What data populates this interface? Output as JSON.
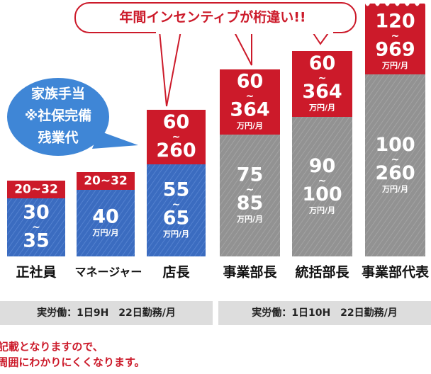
{
  "bubble_top": "年間インセンティブが桁違い!!",
  "bubble_left": [
    "家族手当",
    "※社保完備",
    "残業代"
  ],
  "columns": [
    {
      "label": "正社員",
      "red": [
        "20~32"
      ],
      "body": [
        "30",
        "~",
        "35"
      ]
    },
    {
      "label": "マネージャー",
      "red": [
        "20~32"
      ],
      "body": [
        "40",
        "万円/月"
      ]
    },
    {
      "label": "店長",
      "red": [
        "60",
        "~",
        "260"
      ],
      "body": [
        "55",
        "~",
        "65",
        "万円/月"
      ]
    },
    {
      "label": "事業部長",
      "red": [
        "60",
        "~",
        "364",
        "万円/月"
      ],
      "body": [
        "75",
        "~",
        "85",
        "万円/月"
      ]
    },
    {
      "label": "統括部長",
      "red": [
        "60",
        "~",
        "364",
        "万円/月"
      ],
      "body": [
        "90",
        "~",
        "100",
        "万円/月"
      ]
    },
    {
      "label": "事業部代表",
      "red": [
        "120",
        "~",
        "969",
        "万円/月"
      ],
      "body": [
        "100",
        "~",
        "260",
        "万円/月"
      ]
    }
  ],
  "work_hours": [
    "実労働：1日9H　22日勤務/月",
    "実労働：1日10H　22日勤務/月"
  ],
  "note": [
    "※保険証には法人名記載となりますので、",
    "風俗事業者であることは周囲にわかりにくくなります。"
  ]
}
